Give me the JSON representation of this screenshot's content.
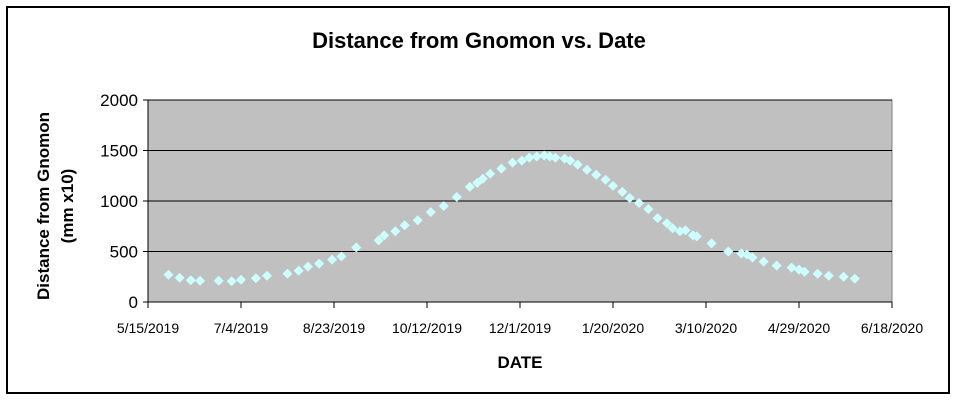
{
  "chart_data": {
    "type": "scatter",
    "title": "Distance from Gnomon vs. Date",
    "xlabel": "DATE",
    "ylabel_lines": [
      "Distance from Gnomon",
      "(mm x10)"
    ],
    "x_axis_type": "date",
    "xlim": [
      "2019-05-15",
      "2020-06-18"
    ],
    "x_tick_labels": [
      "5/15/2019",
      "7/4/2019",
      "8/23/2019",
      "10/12/2019",
      "12/1/2019",
      "1/20/2020",
      "3/10/2020",
      "4/29/2020",
      "6/18/2020"
    ],
    "x_tick_dates": [
      "2019-05-15",
      "2019-07-04",
      "2019-08-23",
      "2019-10-12",
      "2019-12-01",
      "2020-01-20",
      "2020-03-10",
      "2020-04-29",
      "2020-06-18"
    ],
    "ylim": [
      0,
      2000
    ],
    "y_tick_labels": [
      "0",
      "500",
      "1000",
      "1500",
      "2000"
    ],
    "y_ticks": [
      0,
      500,
      1000,
      1500,
      2000
    ],
    "grid": "horizontal",
    "legend": "none",
    "colors": {
      "plot_background": "#c0c0c0",
      "marker": "#ccffff",
      "gridline": "#000000"
    },
    "series": [
      {
        "marker": "diamond",
        "x": [
          "2019-05-26",
          "2019-06-01",
          "2019-06-07",
          "2019-06-12",
          "2019-06-22",
          "2019-06-29",
          "2019-07-04",
          "2019-07-12",
          "2019-07-18",
          "2019-07-29",
          "2019-08-04",
          "2019-08-09",
          "2019-08-15",
          "2019-08-22",
          "2019-08-27",
          "2019-09-04",
          "2019-09-16",
          "2019-09-19",
          "2019-09-25",
          "2019-09-30",
          "2019-10-07",
          "2019-10-14",
          "2019-10-21",
          "2019-10-28",
          "2019-11-04",
          "2019-11-08",
          "2019-11-11",
          "2019-11-15",
          "2019-11-21",
          "2019-11-27",
          "2019-12-02",
          "2019-12-06",
          "2019-12-10",
          "2019-12-14",
          "2019-12-17",
          "2019-12-20",
          "2019-12-25",
          "2019-12-28",
          "2020-01-01",
          "2020-01-06",
          "2020-01-11",
          "2020-01-16",
          "2020-01-20",
          "2020-01-25",
          "2020-01-29",
          "2020-02-03",
          "2020-02-08",
          "2020-02-13",
          "2020-02-18",
          "2020-02-21",
          "2020-02-25",
          "2020-02-28",
          "2020-03-03",
          "2020-03-05",
          "2020-03-13",
          "2020-03-22",
          "2020-03-29",
          "2020-04-01",
          "2020-04-04",
          "2020-04-10",
          "2020-04-17",
          "2020-04-25",
          "2020-04-29",
          "2020-05-02",
          "2020-05-09",
          "2020-05-15",
          "2020-05-23",
          "2020-05-29"
        ],
        "y": [
          270,
          240,
          215,
          210,
          210,
          205,
          220,
          235,
          260,
          280,
          310,
          350,
          380,
          420,
          450,
          540,
          610,
          660,
          700,
          760,
          810,
          890,
          950,
          1040,
          1140,
          1180,
          1220,
          1270,
          1320,
          1380,
          1400,
          1430,
          1440,
          1450,
          1440,
          1430,
          1420,
          1400,
          1360,
          1310,
          1260,
          1210,
          1150,
          1090,
          1030,
          980,
          920,
          830,
          780,
          730,
          700,
          710,
          660,
          650,
          580,
          500,
          480,
          470,
          440,
          400,
          360,
          340,
          320,
          300,
          280,
          260,
          250,
          230
        ]
      }
    ]
  }
}
